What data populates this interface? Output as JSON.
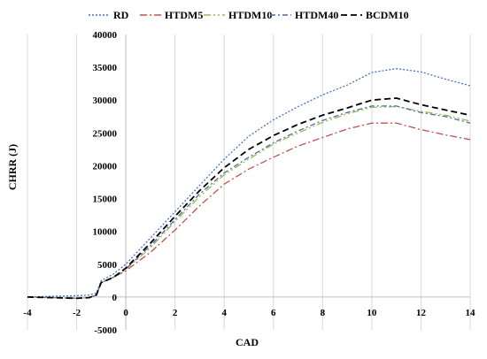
{
  "chart_data": {
    "type": "line",
    "title": "",
    "xlabel": "CAD",
    "ylabel": "CHRR (J)",
    "xlim": [
      -4,
      14
    ],
    "ylim": [
      -5000,
      40000
    ],
    "xticks": [
      -4,
      -2,
      0,
      2,
      4,
      6,
      8,
      10,
      12,
      14
    ],
    "yticks": [
      -5000,
      0,
      5000,
      10000,
      15000,
      20000,
      25000,
      30000,
      35000,
      40000
    ],
    "grid": "vertical",
    "legend_position": "top",
    "x": [
      -4,
      -3,
      -2,
      -1.5,
      -1.2,
      -1,
      -0.5,
      0,
      1,
      2,
      3,
      4,
      5,
      6,
      7,
      8,
      9,
      10,
      11,
      12,
      13,
      14
    ],
    "series": [
      {
        "name": "RD",
        "color": "#4472C4",
        "dash": "2,2",
        "values": [
          0,
          100,
          200,
          300,
          600,
          2500,
          3500,
          5000,
          9000,
          13000,
          17000,
          21000,
          24500,
          27000,
          29000,
          30800,
          32300,
          34200,
          34800,
          34300,
          33200,
          32200
        ]
      },
      {
        "name": "HTDM5",
        "color": "#C0504D",
        "dash": "8,3,2,3",
        "values": [
          0,
          -100,
          -200,
          -100,
          300,
          2200,
          3000,
          4000,
          6800,
          10200,
          13900,
          17200,
          19500,
          21300,
          23000,
          24300,
          25600,
          26500,
          26500,
          25500,
          24700,
          24000
        ]
      },
      {
        "name": "HTDM10",
        "color": "#9BBB59",
        "dash": "8,3,2,3,2,3",
        "values": [
          0,
          -100,
          -200,
          -100,
          300,
          2200,
          3000,
          4200,
          7500,
          11500,
          15300,
          18600,
          21000,
          23300,
          25000,
          26600,
          27900,
          28900,
          29000,
          28300,
          27700,
          26800
        ]
      },
      {
        "name": "HTDM40",
        "color": "#4F6C9E",
        "dash": "6,3,2,3",
        "values": [
          0,
          -100,
          -200,
          -100,
          300,
          2200,
          3000,
          4300,
          7800,
          11800,
          15700,
          18900,
          21300,
          23500,
          25300,
          26900,
          28100,
          29100,
          29100,
          28100,
          27500,
          26500
        ]
      },
      {
        "name": "BCDM10",
        "color": "#000000",
        "dash": "7,4",
        "values": [
          0,
          -100,
          -200,
          -100,
          300,
          2200,
          3000,
          4400,
          8200,
          12300,
          16200,
          19700,
          22500,
          24600,
          26300,
          27700,
          28800,
          30000,
          30300,
          29300,
          28500,
          27700
        ]
      }
    ]
  }
}
